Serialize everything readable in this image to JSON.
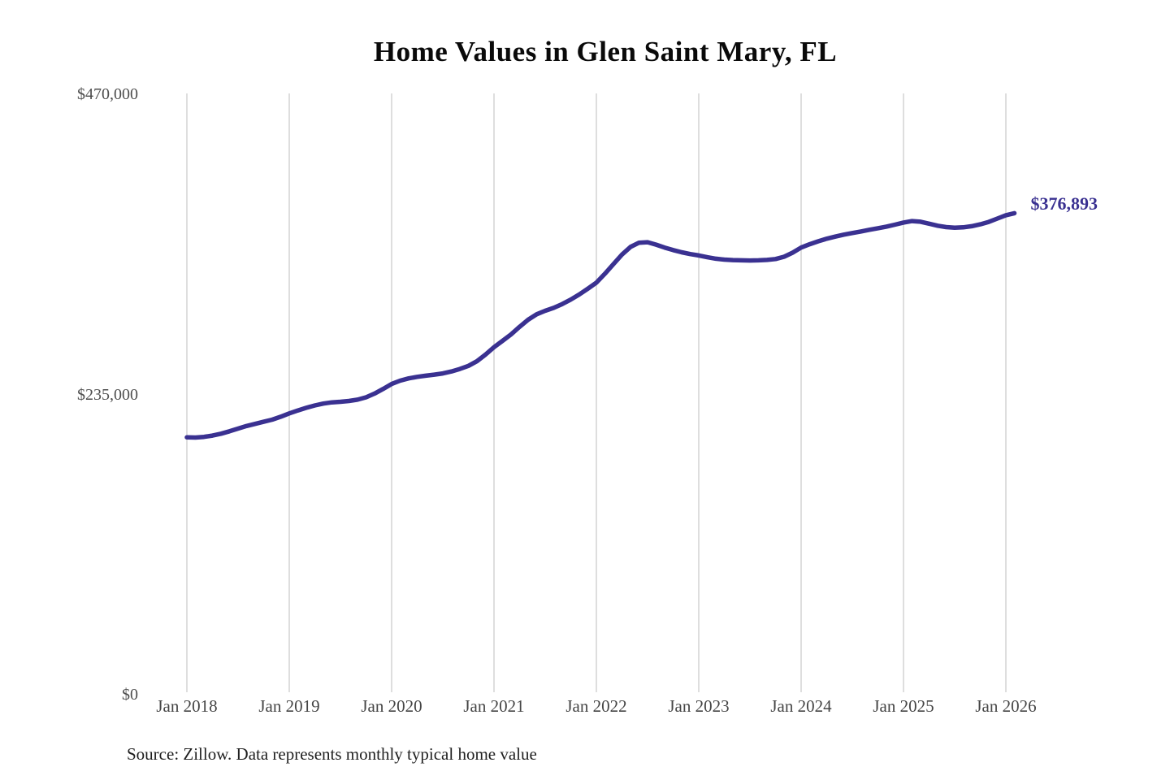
{
  "chart_data": {
    "type": "line",
    "title": "Home Values in Glen Saint Mary, FL",
    "source_note": "Source: Zillow. Data represents monthly typical home value",
    "end_label": "$376,893",
    "end_value": 376893,
    "line_color": "#3a3191",
    "grid_color": "#c9c9c9",
    "grid": "vertical-only",
    "legend": "none",
    "ylim": [
      0,
      470000
    ],
    "y_ticks": [
      {
        "label": "$470,000",
        "value": 470000
      },
      {
        "label": "$235,000",
        "value": 235000
      },
      {
        "label": "$0",
        "value": 0
      }
    ],
    "x_tick_labels": [
      "Jan 2018",
      "Jan 2019",
      "Jan 2020",
      "Jan 2021",
      "Jan 2022",
      "Jan 2023",
      "Jan 2024",
      "Jan 2025",
      "Jan 2026"
    ],
    "series": [
      {
        "name": "Monthly typical home value",
        "start_month": "2018-01",
        "end_month": "2026-02",
        "values": [
          201500,
          201300,
          201800,
          202800,
          204300,
          206200,
          208300,
          210300,
          212000,
          213600,
          215300,
          217600,
          220200,
          222500,
          224600,
          226400,
          227900,
          228800,
          229300,
          229900,
          230900,
          232800,
          235700,
          239300,
          243200,
          245800,
          247600,
          248800,
          249700,
          250500,
          251500,
          253000,
          255000,
          257400,
          261000,
          266200,
          272000,
          277000,
          282000,
          288000,
          293500,
          297800,
          300500,
          302800,
          305800,
          309300,
          313300,
          317800,
          322500,
          329500,
          337000,
          344500,
          350500,
          353800,
          354200,
          352300,
          350000,
          348000,
          346300,
          344900,
          343800,
          342400,
          341300,
          340600,
          340200,
          340000,
          339900,
          340000,
          340300,
          341000,
          342800,
          346000,
          350000,
          352600,
          354900,
          356900,
          358600,
          360100,
          361400,
          362600,
          363900,
          365100,
          366400,
          367900,
          369600,
          370700,
          370200,
          368700,
          367100,
          366000,
          365500,
          365800,
          366700,
          368200,
          370100,
          372700,
          375300,
          376893
        ]
      }
    ]
  }
}
